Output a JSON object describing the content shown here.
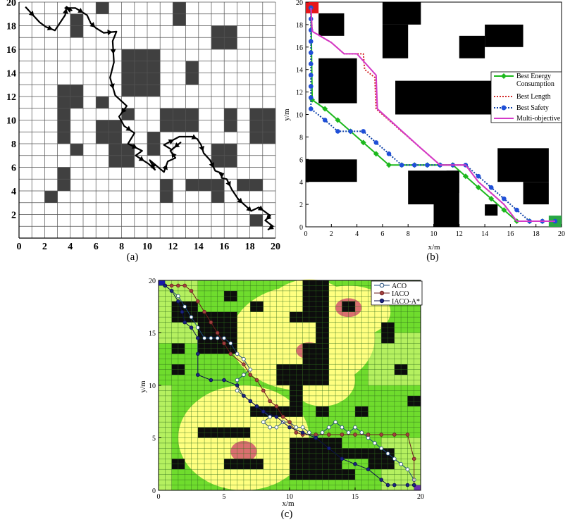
{
  "chart_data": [
    {
      "id": "a",
      "type": "line",
      "caption": "(a)",
      "xlim": [
        0,
        20
      ],
      "ylim": [
        0,
        20
      ],
      "xticks": [
        "0",
        "2",
        "4",
        "6",
        "8",
        "10",
        "12",
        "14",
        "16",
        "18",
        "20"
      ],
      "yticks": [
        "0",
        "2",
        "4",
        "6",
        "8",
        "10",
        "12",
        "14",
        "16",
        "18",
        "20"
      ],
      "grid": true,
      "obstacle_color": "#404040",
      "obstacles": [
        [
          2,
          3,
          1,
          1
        ],
        [
          3,
          4,
          1,
          2
        ],
        [
          3,
          8,
          1,
          5
        ],
        [
          4,
          7,
          1,
          1
        ],
        [
          4,
          11,
          1,
          2
        ],
        [
          4,
          17,
          1,
          1
        ],
        [
          4,
          18,
          1,
          1
        ],
        [
          6,
          19,
          1,
          1
        ],
        [
          6,
          8,
          2,
          2
        ],
        [
          6,
          11,
          1,
          1
        ],
        [
          7,
          6,
          2,
          2
        ],
        [
          8,
          12,
          3,
          4
        ],
        [
          8,
          10,
          1,
          1
        ],
        [
          10,
          7,
          1,
          2
        ],
        [
          11,
          3,
          1,
          2
        ],
        [
          11,
          9,
          3,
          2
        ],
        [
          12,
          18,
          1,
          2
        ],
        [
          13,
          4,
          2,
          1
        ],
        [
          13,
          13,
          1,
          2
        ],
        [
          13,
          9,
          1,
          1
        ],
        [
          15,
          6,
          2,
          2
        ],
        [
          15,
          3,
          1,
          2
        ],
        [
          15,
          16,
          2,
          2
        ],
        [
          16,
          9,
          1,
          1
        ],
        [
          16,
          10,
          1,
          1
        ],
        [
          17,
          4,
          2,
          1
        ],
        [
          18,
          8,
          2,
          3
        ],
        [
          18,
          1,
          1,
          1
        ]
      ],
      "series": [
        {
          "color": "#000000",
          "x": [
            0.5,
            1.6,
            2.1,
            2.8,
            3.6,
            3.7,
            4.1,
            3.6,
            4.4,
            5.3,
            5.6,
            6.0,
            6.6,
            7.6,
            7.3,
            7.4,
            7.1,
            7.5,
            8.4,
            7.8,
            8.2,
            9.0,
            8.5,
            9.6,
            9.1,
            10.1,
            10.6,
            10.2,
            11.3,
            11.6,
            12.2,
            11.8,
            12.6,
            11.9,
            11.3,
            12.5,
            13.5,
            13.9,
            14.2,
            14.4,
            14.9,
            15.3,
            15.8,
            15.8,
            16.2,
            16.6,
            17.1,
            17.5,
            17.9,
            18.1,
            18.7,
            19.1,
            19.6,
            19.2,
            19.8,
            19.4
          ],
          "y": [
            19.6,
            18.3,
            17.9,
            17.6,
            18.9,
            19.6,
            19.3,
            19.5,
            19.5,
            18.9,
            18.2,
            17.8,
            17.4,
            17.5,
            16.7,
            14.9,
            13.6,
            12.1,
            11.2,
            10.3,
            9.5,
            8.9,
            8.0,
            7.4,
            7.0,
            6.3,
            5.8,
            6.6,
            5.6,
            6.5,
            6.8,
            7.4,
            8.1,
            7.5,
            7.9,
            8.6,
            8.6,
            8.4,
            7.9,
            7.2,
            6.6,
            5.7,
            5.5,
            5.1,
            5.0,
            4.1,
            3.3,
            2.9,
            2.5,
            2.3,
            2.6,
            2.3,
            1.9,
            1.5,
            1.0,
            0.7
          ]
        }
      ]
    },
    {
      "id": "b",
      "type": "line",
      "caption": "(b)",
      "xlabel": "x/m",
      "ylabel": "y/m",
      "xlim": [
        0,
        20
      ],
      "ylim": [
        0,
        20
      ],
      "xticks": [
        "0",
        "2",
        "4",
        "6",
        "8",
        "10",
        "12",
        "14",
        "16",
        "18",
        "20"
      ],
      "yticks": [
        "0",
        "2",
        "4",
        "6",
        "8",
        "10",
        "12",
        "14",
        "16",
        "18",
        "20"
      ],
      "obstacle_color": "#000000",
      "start_color": "#e6151a",
      "goal_color": "#28a745",
      "obstacles": [
        [
          1,
          17,
          2,
          2
        ],
        [
          1,
          11,
          3,
          4
        ],
        [
          6,
          18,
          3,
          2
        ],
        [
          6,
          15,
          2,
          3
        ],
        [
          7,
          10,
          9,
          3
        ],
        [
          12,
          15,
          2,
          2
        ],
        [
          14,
          16,
          3,
          2
        ],
        [
          0,
          4,
          4,
          2
        ],
        [
          8,
          2,
          2,
          3
        ],
        [
          10,
          0,
          2,
          5
        ],
        [
          11,
          3,
          1,
          2
        ],
        [
          15,
          4,
          4,
          3
        ],
        [
          17,
          2,
          2,
          2
        ],
        [
          14,
          1,
          1,
          1
        ]
      ],
      "legend": {
        "location": "right",
        "entries": [
          "Best Energy Consumption",
          "Best Length",
          "Best Safety",
          "Multi-objective"
        ]
      },
      "series": [
        {
          "name": "Best Energy Consumption",
          "color": "#1db81d",
          "style": "solid",
          "marker": "diamond",
          "x": [
            0.4,
            0.5,
            1.5,
            2.5,
            3.5,
            4.5,
            5.5,
            6.5,
            7.5,
            8.5,
            9.5,
            10.5,
            11.5,
            12.5,
            13.5,
            14.5,
            15.5,
            16.5,
            17.5,
            18.5,
            19.5
          ],
          "y": [
            19.5,
            11.3,
            10.5,
            9.5,
            8.5,
            7.5,
            6.5,
            5.5,
            5.5,
            5.5,
            5.5,
            5.5,
            5.5,
            4.5,
            3.5,
            2.5,
            1.5,
            0.5,
            0.5,
            0.5,
            0.5
          ]
        },
        {
          "name": "Best Length",
          "color": "#d42a2a",
          "style": "dotted",
          "marker": "none",
          "x": [
            0.4,
            0.5,
            2.0,
            3.0,
            4.5,
            4.6,
            5.4,
            5.5,
            7.0,
            10.5,
            12.5,
            13.5,
            14.5,
            15.5,
            16.5,
            19.5
          ],
          "y": [
            19.5,
            17.4,
            16.4,
            15.4,
            15.4,
            14.0,
            13.3,
            10.5,
            9.0,
            5.5,
            5.5,
            4.0,
            3.0,
            2.0,
            0.5,
            0.5
          ]
        },
        {
          "name": "Best Safety",
          "color": "#0b3fa8",
          "style": "dotted",
          "marker": "circle",
          "x": [
            0.4,
            0.4,
            0.4,
            0.4,
            0.4,
            0.4,
            0.4,
            0.4,
            0.4,
            0.4,
            1.5,
            2.5,
            3.5,
            4.5,
            5.5,
            6.5,
            7.5,
            8.5,
            9.5,
            10.5,
            11.5,
            12.5,
            13.5,
            14.5,
            15.5,
            16.5,
            17.5,
            18.5,
            19.5
          ],
          "y": [
            19.5,
            18.5,
            17.5,
            16.5,
            15.5,
            14.5,
            13.5,
            12.5,
            11.5,
            10.5,
            9.5,
            8.5,
            8.5,
            8.5,
            7.5,
            6.5,
            5.5,
            5.5,
            5.5,
            5.5,
            5.5,
            5.5,
            4.5,
            3.5,
            2.5,
            1.5,
            0.5,
            0.5,
            0.5
          ]
        },
        {
          "name": "Multi-objective",
          "color": "#d43ac8",
          "style": "solid",
          "marker": "none",
          "x": [
            0.4,
            0.5,
            2.0,
            3.0,
            4.0,
            5.5,
            5.6,
            9.0,
            10.5,
            12.5,
            13.5,
            14.5,
            15.5,
            16.5,
            19.5
          ],
          "y": [
            19.5,
            17.4,
            16.4,
            15.4,
            15.4,
            13.5,
            10.5,
            7.0,
            5.5,
            5.5,
            4.0,
            3.0,
            2.0,
            0.5,
            0.5
          ]
        }
      ]
    },
    {
      "id": "c",
      "type": "line",
      "caption": "(c)",
      "xlabel": "x/m",
      "ylabel": "y/m",
      "xlim": [
        0,
        20
      ],
      "ylim": [
        0,
        20
      ],
      "xticks": [
        "0",
        "5",
        "10",
        "15",
        "20"
      ],
      "yticks": [
        "0",
        "5",
        "10",
        "15",
        "20"
      ],
      "background_color": "#6fdc2d",
      "grid_color": "#2f6e1c",
      "zone_colors": {
        "near": "#ffff80",
        "hot": "#d96f6f",
        "mid": "#b5f060"
      },
      "obstacle_color": "#0d0d0d",
      "start_color": "#1a1aa8",
      "goal_color": "#6a2fb0",
      "obstacles": [
        [
          1,
          16,
          2,
          2
        ],
        [
          3,
          13,
          3,
          4
        ],
        [
          7,
          17,
          1,
          1
        ],
        [
          5,
          18,
          1,
          1
        ],
        [
          10,
          16,
          1,
          1
        ],
        [
          14,
          17,
          1,
          1
        ],
        [
          18,
          18,
          1,
          1
        ],
        [
          11,
          16,
          2,
          4
        ],
        [
          11,
          10,
          2,
          4
        ],
        [
          9,
          10,
          1,
          2
        ],
        [
          10,
          7,
          1,
          5
        ],
        [
          7,
          7,
          3,
          1
        ],
        [
          12,
          12,
          1,
          5
        ],
        [
          3,
          5,
          4,
          1
        ],
        [
          5,
          2,
          3,
          1
        ],
        [
          1,
          11,
          1,
          1
        ],
        [
          1,
          13,
          1,
          1
        ],
        [
          1,
          2,
          1,
          1
        ],
        [
          10,
          1,
          4,
          4
        ],
        [
          14,
          3,
          2,
          1
        ],
        [
          16,
          2,
          2,
          2
        ],
        [
          15,
          7,
          1,
          1
        ],
        [
          12,
          7,
          1,
          1
        ],
        [
          18,
          11,
          1,
          1
        ],
        [
          17,
          14,
          1,
          2
        ],
        [
          14,
          1,
          1,
          1
        ],
        [
          19,
          8,
          1,
          1
        ]
      ],
      "legend": {
        "location": "top-right",
        "entries": [
          "ACO",
          "IACO",
          "IACO-A*"
        ]
      },
      "series": [
        {
          "name": "ACO",
          "color": "#ffffff",
          "edge": "#1d4a7a",
          "marker": "circle-open",
          "x": [
            0.5,
            1.0,
            1.5,
            2.0,
            2.5,
            3.0,
            3.5,
            4.0,
            4.5,
            5.0,
            5.5,
            6.0,
            6.5,
            7.0,
            6.5,
            6.0,
            6.0,
            6.5,
            7.0,
            7.5,
            8.0,
            8.5,
            8.0,
            8.5,
            9.0,
            9.5,
            10.0,
            10.5,
            11.0,
            11.5,
            12.0,
            12.5,
            13.0,
            13.5,
            14.0,
            14.5,
            15.0,
            15.5,
            16.0,
            16.5,
            17.0,
            17.5,
            18.0,
            18.5,
            19.0,
            19.5
          ],
          "y": [
            19.5,
            19.0,
            18.5,
            17.5,
            16.5,
            15.5,
            14.5,
            14.5,
            14.5,
            14.5,
            14.0,
            13.0,
            12.5,
            11.5,
            11.0,
            10.5,
            9.5,
            9.0,
            8.5,
            8.0,
            7.5,
            7.0,
            6.5,
            6.0,
            6.0,
            6.5,
            6.5,
            6.0,
            6.0,
            5.5,
            5.0,
            5.5,
            6.0,
            6.5,
            6.0,
            5.5,
            6.0,
            5.5,
            5.0,
            4.5,
            4.0,
            3.5,
            3.0,
            2.5,
            2.0,
            1.0
          ]
        },
        {
          "name": "IACO",
          "color": "#a24040",
          "edge": "#6a1d1d",
          "marker": "circle-filled",
          "x": [
            0.5,
            1.0,
            1.5,
            2.0,
            2.5,
            3.0,
            3.5,
            4.0,
            4.5,
            5.0,
            5.5,
            6.5,
            7.0,
            7.5,
            8.0,
            8.5,
            9.0,
            9.5,
            10.0,
            10.5,
            11.0,
            12.0,
            13.0,
            14.0,
            15.0,
            16.0,
            17.0,
            18.0,
            19.0,
            19.5,
            19.5
          ],
          "y": [
            19.5,
            19.5,
            19.5,
            19.5,
            19.0,
            18.0,
            17.0,
            16.0,
            15.0,
            14.0,
            13.0,
            12.0,
            11.0,
            10.5,
            9.5,
            8.5,
            8.0,
            7.0,
            6.5,
            5.5,
            5.3,
            5.3,
            5.3,
            5.3,
            5.3,
            5.3,
            5.3,
            5.3,
            5.3,
            3.0,
            0.5
          ]
        },
        {
          "name": "IACO-A*",
          "color": "#1a237e",
          "edge": "#0b0f4a",
          "marker": "circle-filled",
          "x": [
            0.5,
            1.0,
            1.5,
            1.8,
            2.0,
            2.5,
            3.0,
            3.0,
            3.0,
            4.0,
            5.0,
            6.0,
            6.5,
            7.0,
            7.5,
            8.0,
            9.0,
            10.0,
            11.0,
            12.0,
            13.0,
            14.0,
            15.0,
            16.0,
            17.0,
            17.5,
            18.0,
            19.0,
            19.5
          ],
          "y": [
            19.5,
            19.0,
            18.0,
            17.0,
            16.0,
            15.5,
            14.5,
            13.0,
            11.0,
            10.5,
            10.5,
            10.0,
            9.0,
            8.5,
            8.0,
            7.5,
            7.0,
            6.0,
            5.5,
            5.0,
            4.0,
            3.0,
            2.5,
            2.0,
            1.0,
            0.5,
            0.5,
            0.5,
            0.5
          ]
        }
      ]
    }
  ]
}
